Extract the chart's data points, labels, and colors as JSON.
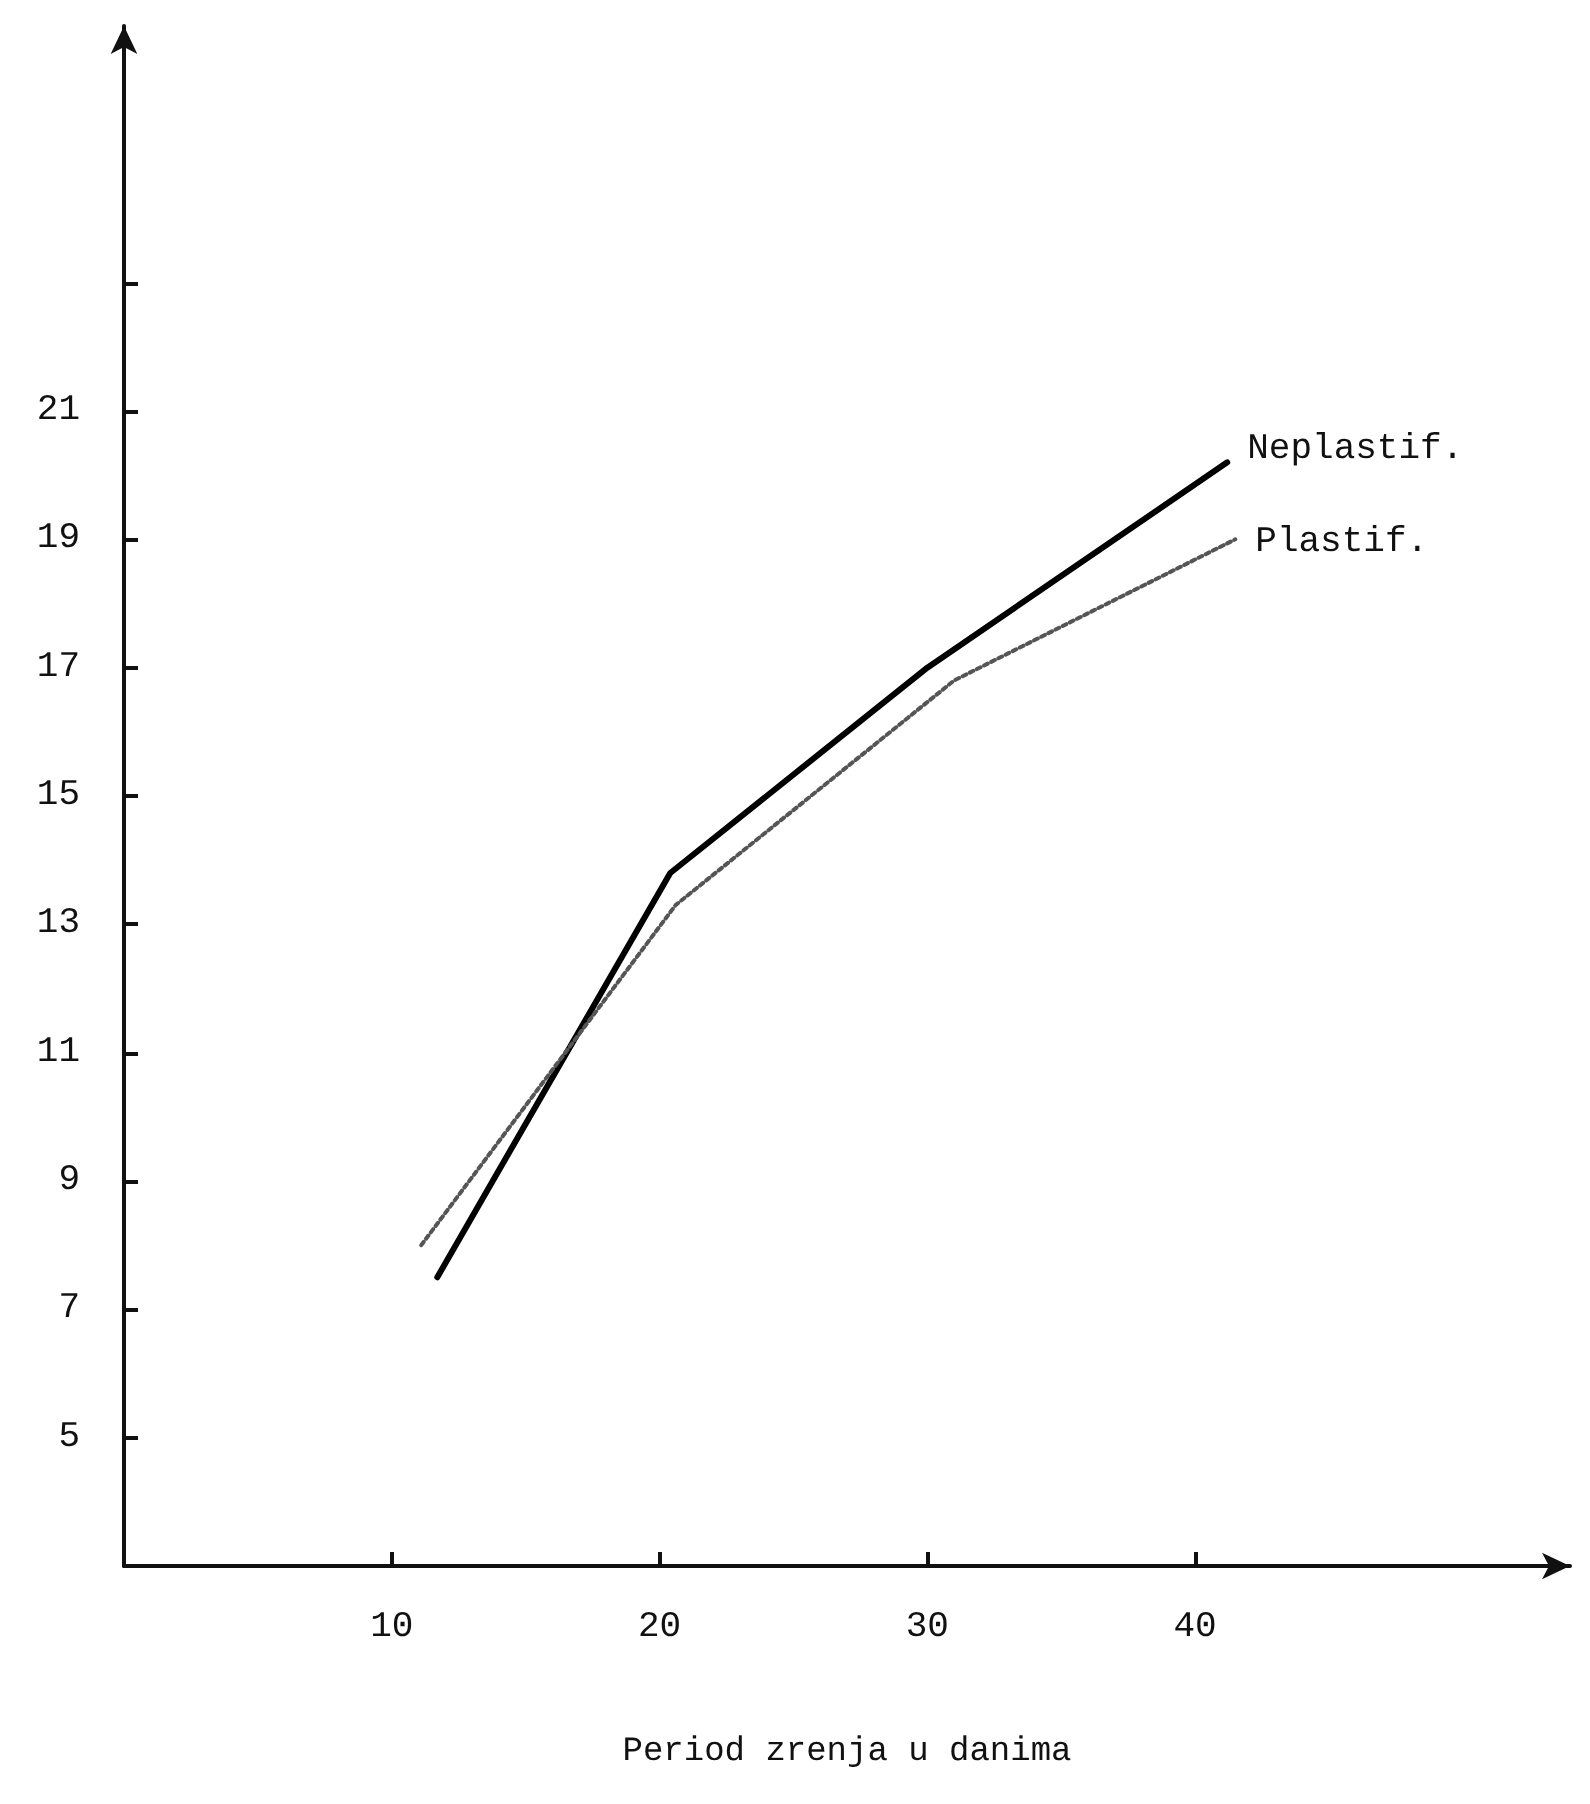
{
  "chart_data": {
    "type": "line",
    "xlabel": "Period zrenja u danima",
    "xlim": [
      0,
      54
    ],
    "xticks": [
      10,
      20,
      30,
      40
    ],
    "ylim": [
      3,
      27
    ],
    "yticks": [
      5,
      7,
      9,
      11,
      13,
      15,
      17,
      19,
      21,
      {
        "value": 23,
        "label": null
      }
    ],
    "grid": false,
    "legend": false,
    "marker": "none",
    "series": [
      {
        "name": "Neplastif.",
        "color": "#000000",
        "line_style": "solid",
        "x": [
          11.7,
          20.4,
          30,
          41.2
        ],
        "values": [
          7.5,
          13.8,
          17,
          20.2
        ]
      },
      {
        "name": "Plastif.",
        "color": "#555555",
        "line_style": "dotted",
        "x": [
          11.1,
          20.6,
          31,
          41.5
        ],
        "values": [
          8,
          13.3,
          16.8,
          19
        ]
      }
    ]
  }
}
